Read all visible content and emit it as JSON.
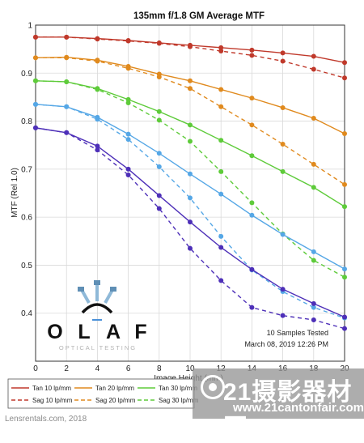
{
  "chart_data": {
    "type": "line",
    "title": "135mm f/1.8 GM Average MTF",
    "xlabel": "Image Height (mm)",
    "ylabel": "MTF (Rel 1.0)",
    "xlim": [
      0,
      20
    ],
    "ylim": [
      0.3,
      1.0
    ],
    "xticks": [
      0,
      2,
      4,
      6,
      8,
      10,
      12,
      14,
      16,
      18,
      20
    ],
    "yticks": [
      0.4,
      0.5,
      0.6,
      0.7,
      0.8,
      0.9,
      1
    ],
    "grid": true,
    "legend_position": "bottom",
    "x": [
      0,
      2,
      4,
      6,
      8,
      10,
      12,
      14,
      16,
      18,
      20
    ],
    "series": [
      {
        "name": "Tan 10 lp/mm",
        "color": "#c0392b",
        "dash": "solid",
        "values": [
          0.975,
          0.975,
          0.972,
          0.968,
          0.963,
          0.958,
          0.953,
          0.948,
          0.942,
          0.935,
          0.922
        ]
      },
      {
        "name": "Sag 10 lp/mm",
        "color": "#c0392b",
        "dash": "dashed",
        "values": [
          0.975,
          0.975,
          0.971,
          0.967,
          0.962,
          0.955,
          0.946,
          0.937,
          0.925,
          0.908,
          0.89
        ]
      },
      {
        "name": "Tan 20 lp/mm",
        "color": "#e08a1e",
        "dash": "solid",
        "values": [
          0.932,
          0.933,
          0.927,
          0.914,
          0.898,
          0.884,
          0.866,
          0.848,
          0.828,
          0.806,
          0.774
        ]
      },
      {
        "name": "Sag 20 lp/mm",
        "color": "#e08a1e",
        "dash": "dashed",
        "values": [
          0.932,
          0.932,
          0.925,
          0.91,
          0.892,
          0.868,
          0.83,
          0.792,
          0.752,
          0.71,
          0.668
        ]
      },
      {
        "name": "Tan 30 lp/mm",
        "color": "#5ecb3a",
        "dash": "solid",
        "values": [
          0.884,
          0.882,
          0.868,
          0.845,
          0.82,
          0.792,
          0.76,
          0.728,
          0.695,
          0.662,
          0.622
        ]
      },
      {
        "name": "Sag 30 lp/mm",
        "color": "#5ecb3a",
        "dash": "dashed",
        "values": [
          0.884,
          0.882,
          0.866,
          0.838,
          0.802,
          0.758,
          0.695,
          0.63,
          0.565,
          0.51,
          0.475
        ]
      },
      {
        "name": "Tan 40 lp/mm",
        "color": "#55a7e6",
        "dash": "solid",
        "values": [
          0.835,
          0.83,
          0.808,
          0.773,
          0.733,
          0.69,
          0.648,
          0.604,
          0.564,
          0.528,
          0.492
        ]
      },
      {
        "name": "Sag 40 lp/mm",
        "color": "#55a7e6",
        "dash": "dashed",
        "values": [
          0.835,
          0.83,
          0.804,
          0.762,
          0.705,
          0.64,
          0.56,
          0.49,
          0.445,
          0.412,
          0.39
        ]
      },
      {
        "name": "Tan 50 lp/mm",
        "color": "#4d2fb8",
        "dash": "solid",
        "values": [
          0.786,
          0.776,
          0.748,
          0.7,
          0.645,
          0.59,
          0.537,
          0.491,
          0.45,
          0.42,
          0.392
        ]
      },
      {
        "name": "Sag 50 lp/mm",
        "color": "#4d2fb8",
        "dash": "dashed",
        "values": [
          0.786,
          0.776,
          0.74,
          0.688,
          0.618,
          0.535,
          0.468,
          0.412,
          0.395,
          0.386,
          0.368
        ]
      }
    ],
    "annotations": [
      "10 Samples Tested",
      "March 08, 2019 12:26 PM"
    ]
  },
  "logo": {
    "name": "OLAF",
    "letters": [
      "O",
      "L",
      "A",
      "F"
    ],
    "subtitle": "OPTICAL TESTING"
  },
  "footer": {
    "credit": "Lensrentals.com, 2018"
  },
  "watermark": {
    "big": "21摄影器材网",
    "small": "www.21cantonfair.com"
  }
}
